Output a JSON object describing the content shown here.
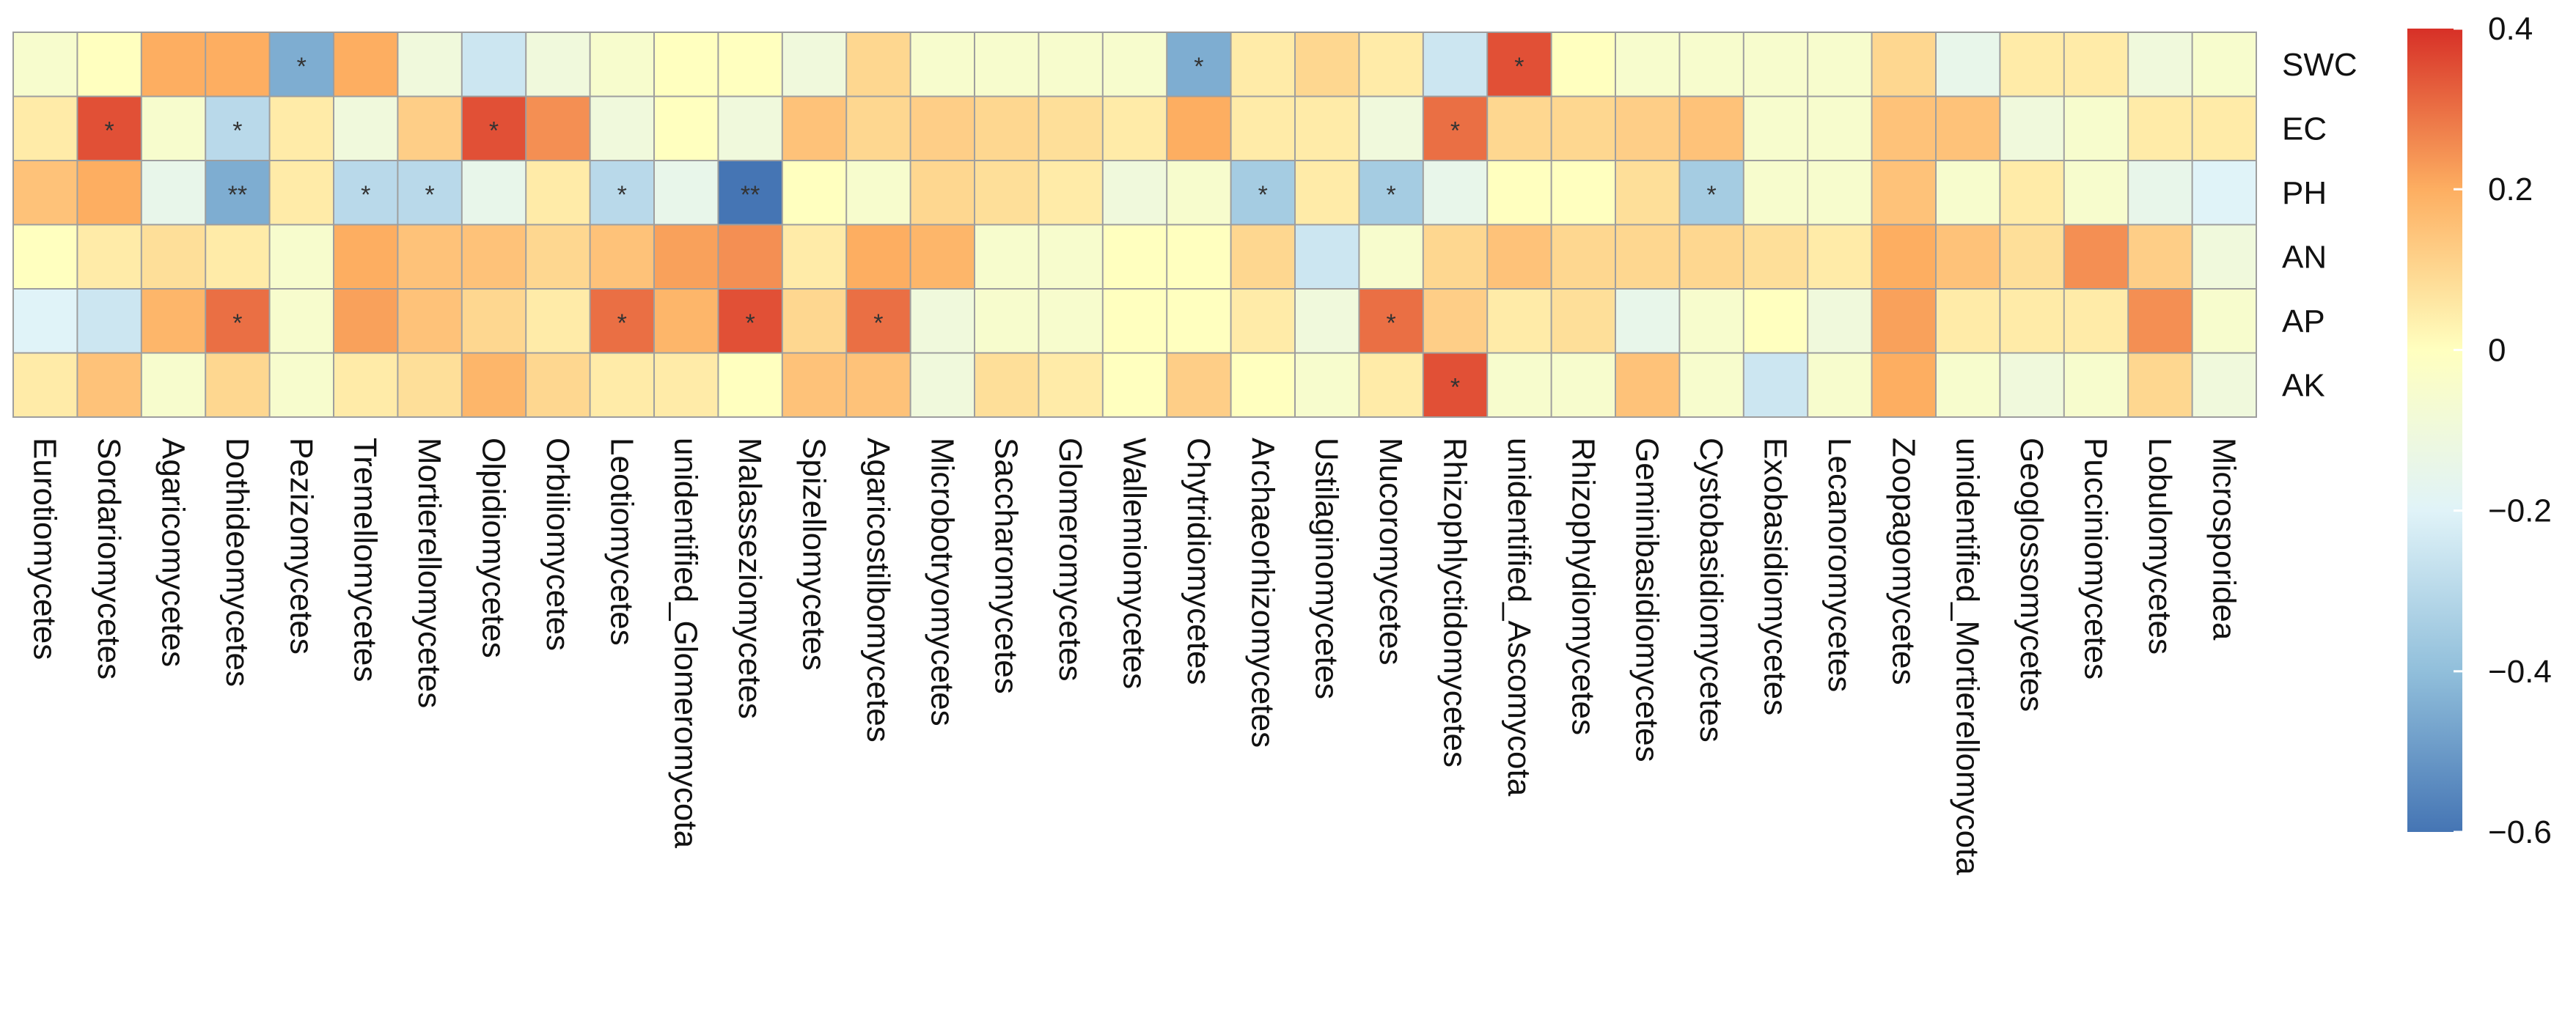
{
  "chart_data": {
    "type": "heatmap",
    "title": "",
    "xlabel": "",
    "ylabel": "",
    "rows": [
      "SWC",
      "EC",
      "PH",
      "AN",
      "AP",
      "AK"
    ],
    "columns": [
      "Eurotiomycetes",
      "Sordariomycetes",
      "Agaricomycetes",
      "Dothideomycetes",
      "Pezizomycetes",
      "Tremellomycetes",
      "Mortierellomycetes",
      "Olpidiomycetes",
      "Orbiliomycetes",
      "Leotiomycetes",
      "unidentified_Glomeromycota",
      "Malasseziomycetes",
      "Spizellomycetes",
      "Agaricostilbomycetes",
      "Microbotryomycetes",
      "Saccharomycetes",
      "Glomeromycetes",
      "Wallemiomycetes",
      "Chytridiomycetes",
      "Archaeorhizomycetes",
      "Ustilaginomycetes",
      "Mucoromycetes",
      "Rhizophlyctidomycetes",
      "unidentified_Ascomycota",
      "Rhizophydiomycetes",
      "Geminibasidiomycetes",
      "Cystobasidiomycetes",
      "Exobasidiomycetes",
      "Lecanoromycetes",
      "Zoopagomycetes",
      "unidentified_Mortierellomycota",
      "Geoglossomycetes",
      "Pucciniomycetes",
      "Lobulomycetes",
      "Microsporidea"
    ],
    "values": [
      [
        -0.05,
        0.0,
        0.2,
        0.2,
        -0.45,
        0.2,
        -0.1,
        -0.25,
        -0.1,
        -0.05,
        0.0,
        0.0,
        -0.1,
        0.1,
        -0.05,
        -0.05,
        -0.05,
        -0.05,
        -0.45,
        0.05,
        0.1,
        0.05,
        -0.25,
        0.35,
        0.0,
        -0.05,
        -0.05,
        -0.05,
        -0.05,
        0.1,
        -0.15,
        0.05,
        0.05,
        -0.1,
        -0.05
      ],
      [
        0.05,
        0.35,
        -0.05,
        -0.3,
        0.05,
        -0.1,
        0.12,
        0.35,
        0.25,
        -0.1,
        0.0,
        -0.1,
        0.15,
        0.1,
        0.12,
        0.1,
        0.08,
        0.05,
        0.2,
        0.05,
        0.05,
        -0.1,
        0.3,
        0.1,
        0.1,
        0.12,
        0.15,
        -0.05,
        -0.05,
        0.15,
        0.15,
        -0.1,
        -0.05,
        0.05,
        0.05
      ],
      [
        0.15,
        0.2,
        -0.15,
        -0.45,
        0.05,
        -0.3,
        -0.3,
        -0.15,
        0.05,
        -0.3,
        -0.15,
        -0.6,
        0.0,
        -0.05,
        0.1,
        0.08,
        0.05,
        -0.1,
        -0.05,
        -0.35,
        0.05,
        -0.35,
        -0.15,
        0.0,
        0.0,
        0.08,
        -0.35,
        -0.05,
        -0.05,
        0.15,
        -0.05,
        0.05,
        -0.05,
        -0.15,
        -0.2
      ],
      [
        0.0,
        0.05,
        0.08,
        0.05,
        -0.05,
        0.2,
        0.15,
        0.15,
        0.1,
        0.15,
        0.22,
        0.25,
        0.05,
        0.2,
        0.18,
        -0.05,
        -0.05,
        0.0,
        0.0,
        0.1,
        -0.25,
        -0.05,
        0.1,
        0.15,
        0.1,
        0.1,
        0.1,
        0.08,
        0.05,
        0.2,
        0.15,
        0.08,
        0.25,
        0.12,
        -0.1
      ],
      [
        -0.2,
        -0.25,
        0.18,
        0.3,
        -0.05,
        0.22,
        0.15,
        0.1,
        0.05,
        0.3,
        0.18,
        0.35,
        0.1,
        0.3,
        -0.1,
        -0.05,
        -0.05,
        0.0,
        0.0,
        0.05,
        -0.1,
        0.3,
        0.12,
        0.05,
        0.08,
        -0.15,
        -0.05,
        0.0,
        -0.1,
        0.22,
        0.05,
        0.05,
        0.05,
        0.25,
        -0.05
      ],
      [
        0.05,
        0.15,
        -0.05,
        0.1,
        -0.05,
        0.05,
        0.08,
        0.18,
        0.1,
        0.05,
        0.05,
        0.0,
        0.15,
        0.15,
        -0.1,
        0.08,
        0.05,
        0.0,
        0.12,
        0.0,
        -0.05,
        0.05,
        0.35,
        -0.05,
        -0.05,
        0.15,
        -0.05,
        -0.25,
        -0.05,
        0.2,
        -0.05,
        -0.1,
        -0.05,
        0.1,
        -0.1
      ]
    ],
    "significance": [
      [
        "",
        "",
        "",
        "",
        "*",
        "",
        "",
        "",
        "",
        "",
        "",
        "",
        "",
        "",
        "",
        "",
        "",
        "",
        "*",
        "",
        "",
        "",
        "",
        "*",
        "",
        "",
        "",
        "",
        "",
        "",
        "",
        "",
        "",
        "",
        ""
      ],
      [
        "",
        "*",
        "",
        "*",
        "",
        "",
        "",
        "*",
        "",
        "",
        "",
        "",
        "",
        "",
        "",
        "",
        "",
        "",
        "",
        "",
        "",
        "",
        "*",
        "",
        "",
        "",
        "",
        "",
        "",
        "",
        "",
        "",
        "",
        "",
        ""
      ],
      [
        "",
        "",
        "",
        "**",
        "",
        "*",
        "*",
        "",
        "",
        "*",
        "",
        "**",
        "",
        "",
        "",
        "",
        "",
        "",
        "",
        "*",
        "",
        "*",
        "",
        "",
        "",
        "",
        "*",
        "",
        "",
        "",
        "",
        "",
        "",
        "",
        ""
      ],
      [
        "",
        "",
        "",
        "",
        "",
        "",
        "",
        "",
        "",
        "",
        "",
        "",
        "",
        "",
        "",
        "",
        "",
        "",
        "",
        "",
        "",
        "",
        "",
        "",
        "",
        "",
        "",
        "",
        "",
        "",
        "",
        "",
        "",
        "",
        ""
      ],
      [
        "",
        "",
        "",
        "*",
        "",
        "",
        "",
        "",
        "",
        "*",
        "",
        "*",
        "",
        "*",
        "",
        "",
        "",
        "",
        "",
        "",
        "",
        "*",
        "",
        "",
        "",
        "",
        "",
        "",
        "",
        "",
        "",
        "",
        "",
        "",
        ""
      ],
      [
        "",
        "",
        "",
        "",
        "",
        "",
        "",
        "",
        "",
        "",
        "",
        "",
        "",
        "",
        "",
        "",
        "",
        "",
        "",
        "",
        "",
        "",
        "*",
        "",
        "",
        "",
        "",
        "",
        "",
        "",
        "",
        "",
        "",
        "",
        ""
      ]
    ],
    "color_scale": {
      "min": -0.6,
      "max": 0.4,
      "ticks": [
        "0.4",
        "0.2",
        "0",
        "−0.2",
        "−0.4",
        "−0.6"
      ],
      "tick_values": [
        0.4,
        0.2,
        0.0,
        -0.2,
        -0.4,
        -0.6
      ],
      "stops": [
        {
          "value": -0.6,
          "color": "#4575b4"
        },
        {
          "value": -0.4,
          "color": "#91bfdb"
        },
        {
          "value": -0.2,
          "color": "#e0f3f8"
        },
        {
          "value": 0.0,
          "color": "#ffffbf"
        },
        {
          "value": 0.2,
          "color": "#fdae61"
        },
        {
          "value": 0.4,
          "color": "#d73027"
        }
      ]
    },
    "grid_color": "#9e9e9e"
  }
}
